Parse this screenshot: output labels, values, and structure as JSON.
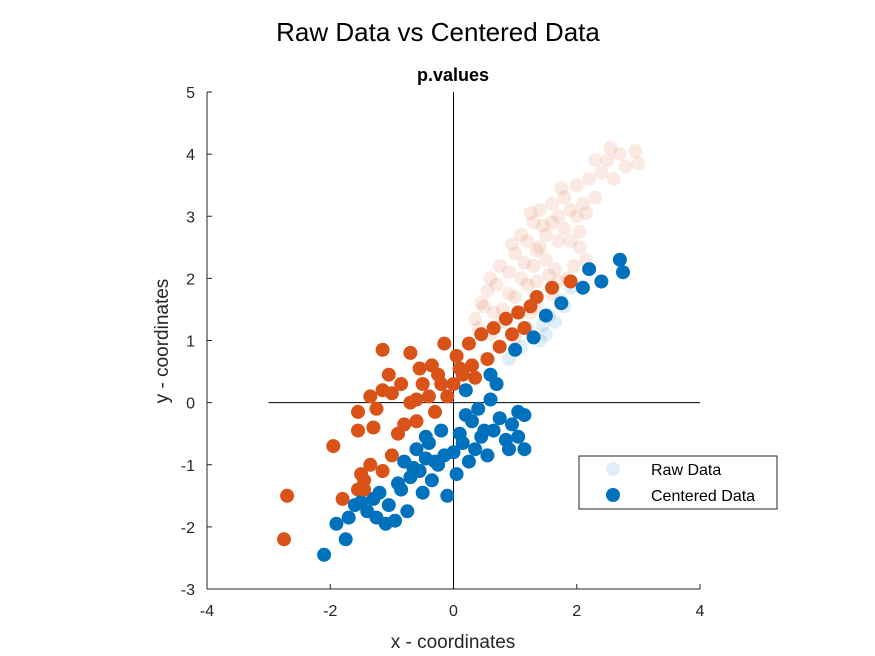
{
  "chart_data": {
    "type": "scatter",
    "title": "Raw Data vs Centered Data",
    "subtitle": "p.values",
    "xlabel": "x - coordinates",
    "ylabel": "y - coordinates",
    "xlim": [
      -4,
      4
    ],
    "ylim": [
      -3,
      5
    ],
    "xticks": [
      "-4",
      "-2",
      "0",
      "2",
      "4"
    ],
    "yticks": [
      "-3",
      "-2",
      "-1",
      "0",
      "1",
      "2",
      "3",
      "4",
      "5"
    ],
    "grid": false,
    "legend_position": "lower-right",
    "reference_lines": {
      "horizontal": {
        "y": 0,
        "x_range": [
          -3,
          4
        ]
      },
      "vertical": {
        "x": 0,
        "y_range": [
          -3,
          5
        ]
      }
    },
    "legend": [
      "Raw Data",
      "Centered Data"
    ],
    "series": [
      {
        "name": "Raw Data",
        "colors": {
          "below_diagonal": "#0072BD",
          "above_diagonal": "#D95319"
        },
        "opacity": 0.12,
        "points": [
          [
            0.35,
            1.35
          ],
          [
            0.55,
            1.8
          ],
          [
            0.45,
            1.6
          ],
          [
            0.7,
            1.9
          ],
          [
            0.8,
            1.5
          ],
          [
            0.9,
            2.1
          ],
          [
            1.0,
            1.7
          ],
          [
            1.0,
            2.4
          ],
          [
            1.1,
            2.0
          ],
          [
            1.2,
            1.9
          ],
          [
            1.2,
            2.6
          ],
          [
            1.3,
            2.2
          ],
          [
            1.3,
            2.9
          ],
          [
            1.4,
            2.5
          ],
          [
            1.4,
            3.1
          ],
          [
            1.5,
            2.3
          ],
          [
            1.5,
            2.7
          ],
          [
            1.6,
            2.9
          ],
          [
            1.6,
            3.2
          ],
          [
            1.7,
            2.6
          ],
          [
            1.7,
            3.0
          ],
          [
            1.8,
            2.8
          ],
          [
            1.8,
            3.3
          ],
          [
            1.9,
            3.1
          ],
          [
            1.9,
            2.6
          ],
          [
            2.0,
            3.0
          ],
          [
            2.0,
            3.5
          ],
          [
            2.1,
            3.2
          ],
          [
            2.2,
            3.6
          ],
          [
            2.3,
            3.3
          ],
          [
            2.4,
            3.7
          ],
          [
            2.5,
            3.9
          ],
          [
            2.6,
            3.6
          ],
          [
            2.7,
            4.0
          ],
          [
            2.8,
            3.8
          ],
          [
            2.95,
            4.05
          ],
          [
            3.0,
            3.85
          ],
          [
            2.55,
            4.1
          ],
          [
            2.3,
            3.9
          ],
          [
            1.1,
            2.7
          ],
          [
            0.6,
            2.0
          ],
          [
            0.75,
            2.2
          ],
          [
            0.5,
            1.55
          ],
          [
            0.9,
            1.75
          ],
          [
            1.15,
            2.25
          ],
          [
            1.35,
            2.45
          ],
          [
            1.55,
            2.05
          ],
          [
            1.45,
            2.85
          ],
          [
            1.25,
            3.05
          ],
          [
            0.95,
            2.55
          ],
          [
            0.8,
            1.3
          ],
          [
            0.6,
            1.1
          ],
          [
            1.05,
            1.45
          ],
          [
            1.65,
            2.15
          ],
          [
            2.05,
            2.75
          ],
          [
            0.4,
            1.2
          ],
          [
            1.75,
            3.45
          ],
          [
            2.15,
            3.05
          ],
          [
            0.65,
            1.45
          ],
          [
            1.35,
            1.95
          ],
          [
            1.2,
            1.2
          ],
          [
            1.35,
            1.55
          ],
          [
            1.55,
            1.4
          ],
          [
            1.6,
            1.75
          ],
          [
            1.75,
            1.65
          ],
          [
            1.85,
            2.0
          ],
          [
            1.95,
            2.2
          ],
          [
            2.05,
            2.5
          ],
          [
            1.4,
            1.0
          ],
          [
            1.1,
            0.9
          ],
          [
            1.25,
            1.45
          ],
          [
            1.5,
            1.1
          ],
          [
            1.65,
            1.3
          ],
          [
            1.8,
            1.55
          ],
          [
            1.9,
            1.85
          ],
          [
            0.9,
            0.7
          ],
          [
            1.0,
            1.05
          ],
          [
            2.15,
            2.3
          ],
          [
            1.45,
            1.25
          ],
          [
            1.7,
            1.95
          ]
        ]
      },
      {
        "name": "Centered Data",
        "colors": {
          "below_diagonal": "#0072BD",
          "above_diagonal": "#D95319"
        },
        "opacity": 1,
        "points": [
          [
            -2.75,
            -2.2
          ],
          [
            -2.1,
            -2.45
          ],
          [
            -1.75,
            -2.2
          ],
          [
            -1.9,
            -1.95
          ],
          [
            -1.7,
            -1.85
          ],
          [
            -1.8,
            -1.55
          ],
          [
            -1.55,
            -1.4
          ],
          [
            -1.6,
            -1.65
          ],
          [
            -1.4,
            -1.75
          ],
          [
            -1.3,
            -1.55
          ],
          [
            -1.25,
            -1.85
          ],
          [
            -1.1,
            -1.95
          ],
          [
            -0.95,
            -1.9
          ],
          [
            -1.05,
            -1.65
          ],
          [
            -0.85,
            -1.4
          ],
          [
            -0.7,
            -1.2
          ],
          [
            -0.75,
            -1.75
          ],
          [
            -0.55,
            -1.1
          ],
          [
            -0.5,
            -1.45
          ],
          [
            -0.35,
            -1.25
          ],
          [
            -0.3,
            -0.95
          ],
          [
            -0.15,
            -0.85
          ],
          [
            -0.1,
            -1.5
          ],
          [
            0.0,
            -0.8
          ],
          [
            0.05,
            -1.15
          ],
          [
            0.15,
            -0.65
          ],
          [
            0.25,
            -0.95
          ],
          [
            0.35,
            -0.75
          ],
          [
            0.45,
            -0.55
          ],
          [
            0.55,
            -0.85
          ],
          [
            0.65,
            -0.45
          ],
          [
            0.75,
            -0.25
          ],
          [
            0.85,
            -0.6
          ],
          [
            0.95,
            -0.35
          ],
          [
            1.05,
            -0.15
          ],
          [
            1.15,
            -0.2
          ],
          [
            0.6,
            0.05
          ],
          [
            0.9,
            -0.75
          ],
          [
            1.05,
            -0.55
          ],
          [
            1.15,
            -0.75
          ],
          [
            -1.35,
            -1.0
          ],
          [
            -1.15,
            -1.1
          ],
          [
            -0.9,
            -1.3
          ],
          [
            -0.6,
            -0.75
          ],
          [
            -0.4,
            -0.65
          ],
          [
            -0.2,
            -0.45
          ],
          [
            0.1,
            -0.5
          ],
          [
            0.3,
            -0.3
          ],
          [
            0.4,
            -0.1
          ],
          [
            -1.45,
            -1.25
          ],
          [
            -1.0,
            -0.85
          ],
          [
            -0.8,
            -0.95
          ],
          [
            -0.65,
            -1.05
          ],
          [
            -0.25,
            -1.0
          ],
          [
            0.2,
            -0.2
          ],
          [
            0.5,
            -0.45
          ],
          [
            -1.2,
            -1.45
          ],
          [
            -1.5,
            -1.6
          ],
          [
            -0.45,
            -0.9
          ],
          [
            0.7,
            0.3
          ],
          [
            -2.7,
            -1.5
          ],
          [
            -1.95,
            -0.7
          ],
          [
            -1.5,
            -1.15
          ],
          [
            -1.45,
            -1.4
          ],
          [
            -1.55,
            -0.15
          ],
          [
            -1.55,
            -0.45
          ],
          [
            -1.3,
            -0.4
          ],
          [
            -1.25,
            -0.1
          ],
          [
            -1.15,
            0.2
          ],
          [
            -1.0,
            0.15
          ],
          [
            -1.15,
            0.85
          ],
          [
            -0.9,
            -0.5
          ],
          [
            -0.8,
            -0.35
          ],
          [
            -0.7,
            0.0
          ],
          [
            -0.6,
            -0.3
          ],
          [
            -0.5,
            0.3
          ],
          [
            -0.45,
            -0.55
          ],
          [
            -0.3,
            -0.15
          ],
          [
            -0.25,
            0.45
          ],
          [
            -0.1,
            0.1
          ],
          [
            0.0,
            0.3
          ],
          [
            0.05,
            0.75
          ],
          [
            0.15,
            0.45
          ],
          [
            0.25,
            0.95
          ],
          [
            0.35,
            0.4
          ],
          [
            0.45,
            1.1
          ],
          [
            0.55,
            0.7
          ],
          [
            0.65,
            1.2
          ],
          [
            0.75,
            0.9
          ],
          [
            0.85,
            1.35
          ],
          [
            0.95,
            1.1
          ],
          [
            1.05,
            1.45
          ],
          [
            1.15,
            1.2
          ],
          [
            1.25,
            1.55
          ],
          [
            1.35,
            1.7
          ],
          [
            1.5,
            1.4
          ],
          [
            1.6,
            1.85
          ],
          [
            1.75,
            1.6
          ],
          [
            1.9,
            1.95
          ],
          [
            2.1,
            1.85
          ],
          [
            2.2,
            2.15
          ],
          [
            2.4,
            1.95
          ],
          [
            2.7,
            2.3
          ],
          [
            2.75,
            2.1
          ],
          [
            -0.7,
            0.8
          ],
          [
            -0.55,
            0.55
          ],
          [
            -0.35,
            0.6
          ],
          [
            -0.2,
            0.3
          ],
          [
            0.1,
            0.55
          ],
          [
            -1.35,
            0.1
          ],
          [
            -1.05,
            0.45
          ],
          [
            -0.85,
            0.3
          ],
          [
            -0.15,
            0.95
          ],
          [
            0.3,
            0.6
          ],
          [
            0.6,
            0.45
          ],
          [
            1.0,
            0.85
          ],
          [
            1.3,
            1.05
          ],
          [
            -0.6,
            0.05
          ],
          [
            -0.4,
            0.1
          ],
          [
            0.2,
            0.2
          ]
        ]
      }
    ]
  }
}
